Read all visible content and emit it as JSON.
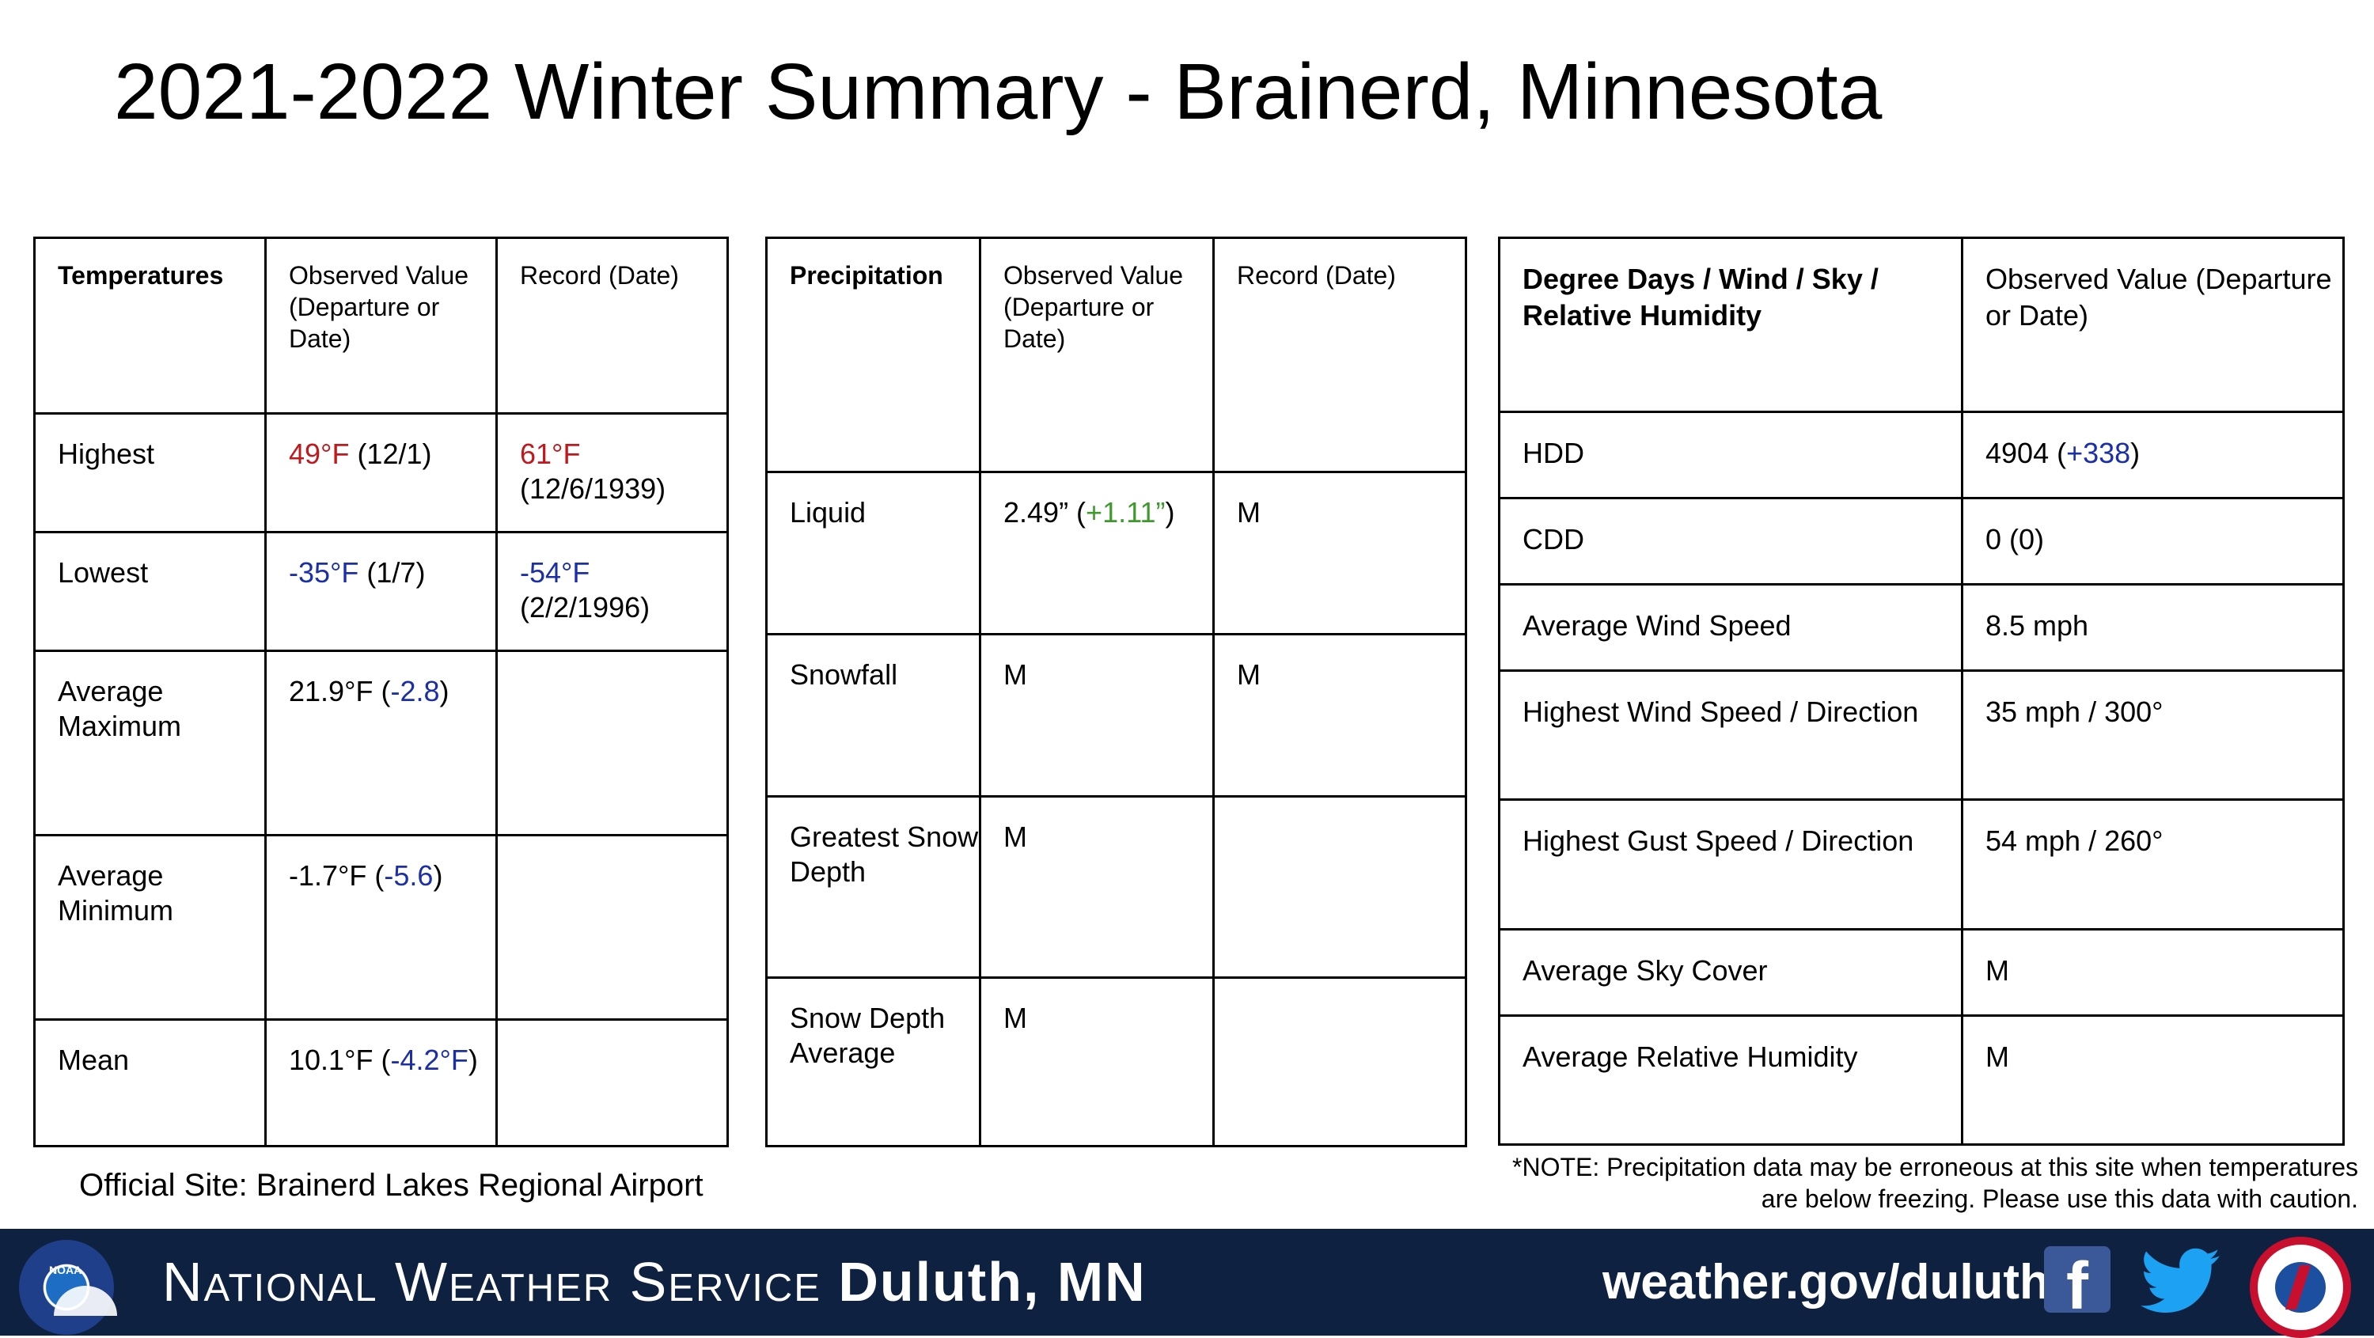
{
  "title": "2021-2022 Winter Summary - Brainerd, Minnesota",
  "temperatures": {
    "headers": [
      "Temperatures",
      "Observed Value (Departure or Date)",
      "Record (Date)"
    ],
    "rows": [
      {
        "label": "Highest",
        "obs_main": "49°F",
        "obs_rest": " (12/1)",
        "rec_main": "61°F",
        "rec_rest": " (12/6/1939)"
      },
      {
        "label": "Lowest",
        "obs_main": "-35°F",
        "obs_rest": " (1/7)",
        "rec_main": "-54°F",
        "rec_rest": " (2/2/1996)"
      },
      {
        "label": "Average Maximum",
        "obs_pre": "21.9°F (",
        "obs_dep": "-2.8",
        "obs_post": ")"
      },
      {
        "label": "Average Minimum",
        "obs_pre": "-1.7°F (",
        "obs_dep": "-5.6",
        "obs_post": ")"
      },
      {
        "label": "Mean",
        "obs_pre": "10.1°F (",
        "obs_dep": "-4.2°F",
        "obs_post": ")"
      }
    ]
  },
  "precipitation": {
    "headers": [
      "Precipitation",
      "Observed Value (Departure or Date)",
      "Record (Date)"
    ],
    "rows": [
      {
        "label": "Liquid",
        "obs_pre": "2.49” (",
        "obs_dep": "+1.11”",
        "obs_post": ")",
        "record": "M"
      },
      {
        "label": "Snowfall",
        "obs": "M",
        "record": "M"
      },
      {
        "label": "Greatest Snow Depth",
        "obs": "M",
        "record": ""
      },
      {
        "label": "Snow Depth Average",
        "obs": "M",
        "record": ""
      }
    ]
  },
  "degree_days": {
    "headers": [
      "Degree Days / Wind / Sky / Relative Humidity",
      "Observed Value (Departure or Date)"
    ],
    "rows": [
      {
        "label": "HDD",
        "obs_pre": "4904 (",
        "obs_dep": "+338",
        "obs_post": ")"
      },
      {
        "label": "CDD",
        "obs": "0 (0)"
      },
      {
        "label": "Average Wind Speed",
        "obs": "8.5 mph"
      },
      {
        "label": "Highest Wind Speed / Direction",
        "obs": "35 mph / 300°"
      },
      {
        "label": "Highest Gust Speed / Direction",
        "obs": "54 mph / 260°"
      },
      {
        "label": "Average Sky Cover",
        "obs": "M"
      },
      {
        "label": "Average Relative Humidity",
        "obs": "M"
      }
    ]
  },
  "official_site": "Official Site: Brainerd Lakes Regional Airport",
  "note": "*NOTE: Precipitation data may be erroneous at this site when temperatures are below freezing. Please use this data with caution.",
  "footer": {
    "nws_light": "National Weather Service",
    "nws_bold": "Duluth, MN",
    "url": "weather.gov/duluth",
    "facebook_glyph": "f",
    "noaa_logo_text": "NOAA",
    "nws_logo_text": "NATIONAL WEATHER SERVICE"
  },
  "colors": {
    "record_high": "#c0181c",
    "cold": "#1a2fa8",
    "precip_positive": "#3e9a2c",
    "footer_bg": "#0f2140"
  }
}
